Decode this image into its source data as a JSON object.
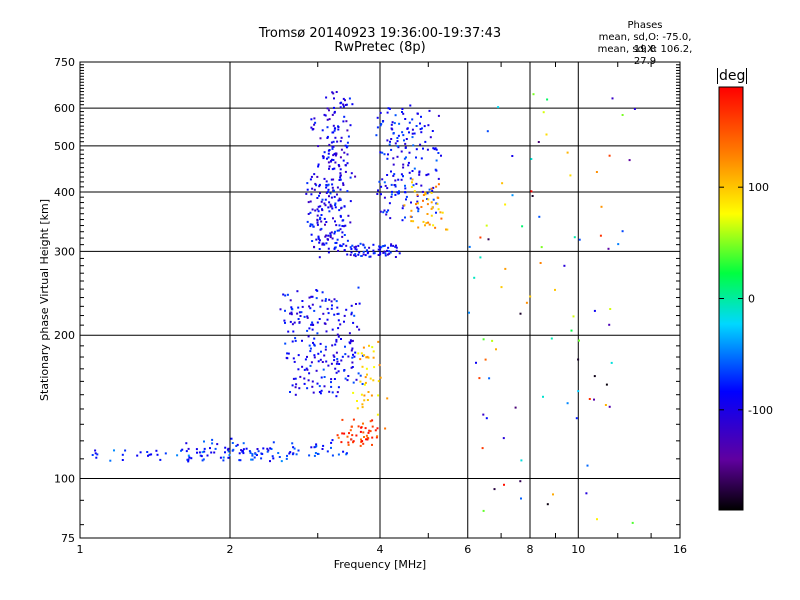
{
  "title": {
    "line1": "Tromsø 20140923 19:36:00-19:37:43",
    "line2": "RwPretec (8p)"
  },
  "phases_box": {
    "heading": "Phases",
    "line1": "mean, sd,O: -75.0, 19.8",
    "line2": "mean, sd,X: 106.2, 27.9"
  },
  "colorbar": {
    "unit": "deg",
    "tick_labels": [
      "100",
      "0",
      "-100"
    ],
    "range": [
      -190,
      190
    ]
  },
  "chart_data": {
    "type": "scatter",
    "title": "Tromsø 20140923 19:36:00-19:37:43 RwPretec (8p)",
    "xlabel": "Frequency [MHz]",
    "ylabel": "Stationary phase Virtual Height [km]",
    "xscale": "log",
    "yscale": "log",
    "xlim": [
      1,
      16
    ],
    "ylim": [
      75,
      750
    ],
    "x_ticks": [
      "1",
      "2",
      "4",
      "6",
      "8",
      "10",
      "16"
    ],
    "y_ticks": [
      "75",
      "100",
      "200",
      "300",
      "400",
      "500",
      "600",
      "750"
    ],
    "x_tick_values": [
      1,
      2,
      4,
      6,
      8,
      10,
      16
    ],
    "y_tick_values": [
      75,
      100,
      200,
      300,
      400,
      500,
      600,
      750
    ],
    "grid": true,
    "color_scale": "phase [deg], -190 (black) to +190 (red)",
    "clusters": [
      {
        "name": "low-frequency E trace",
        "from": [
          1.05,
          112
        ],
        "to": [
          2.6,
          112
        ],
        "phase": -70,
        "n": 60
      },
      {
        "name": "low trace rising",
        "from": [
          1.6,
          112
        ],
        "to": [
          3.4,
          118
        ],
        "phase": -80,
        "n": 80
      },
      {
        "name": "F1 region spread",
        "from": [
          2.6,
          150
        ],
        "to": [
          3.6,
          250
        ],
        "phase": -90,
        "n": 220
      },
      {
        "name": "F2 lower spread",
        "from": [
          2.9,
          300
        ],
        "to": [
          3.4,
          420
        ],
        "phase": -95,
        "n": 160
      },
      {
        "name": "F2 upper spread",
        "from": [
          3.0,
          420
        ],
        "to": [
          3.5,
          650
        ],
        "phase": -100,
        "n": 120
      },
      {
        "name": "F2 right cusp",
        "from": [
          4.0,
          350
        ],
        "to": [
          5.1,
          600
        ],
        "phase": -85,
        "n": 180
      },
      {
        "name": "F2 bottom trace",
        "from": [
          3.4,
          300
        ],
        "to": [
          4.3,
          305
        ],
        "phase": -90,
        "n": 70
      },
      {
        "name": "X-mode low band",
        "from": [
          3.4,
          118
        ],
        "to": [
          4.0,
          130
        ],
        "phase": 165,
        "n": 50
      },
      {
        "name": "X-mode intermediate",
        "from": [
          3.6,
          140
        ],
        "to": [
          4.0,
          190
        ],
        "phase": 100,
        "n": 40
      },
      {
        "name": "X-mode F region",
        "from": [
          4.6,
          330
        ],
        "to": [
          5.4,
          420
        ],
        "phase": 110,
        "n": 45
      },
      {
        "name": "scattered high frequency",
        "from": [
          6.0,
          80
        ],
        "to": [
          13.0,
          650
        ],
        "phase": 0,
        "n": 90
      }
    ]
  }
}
